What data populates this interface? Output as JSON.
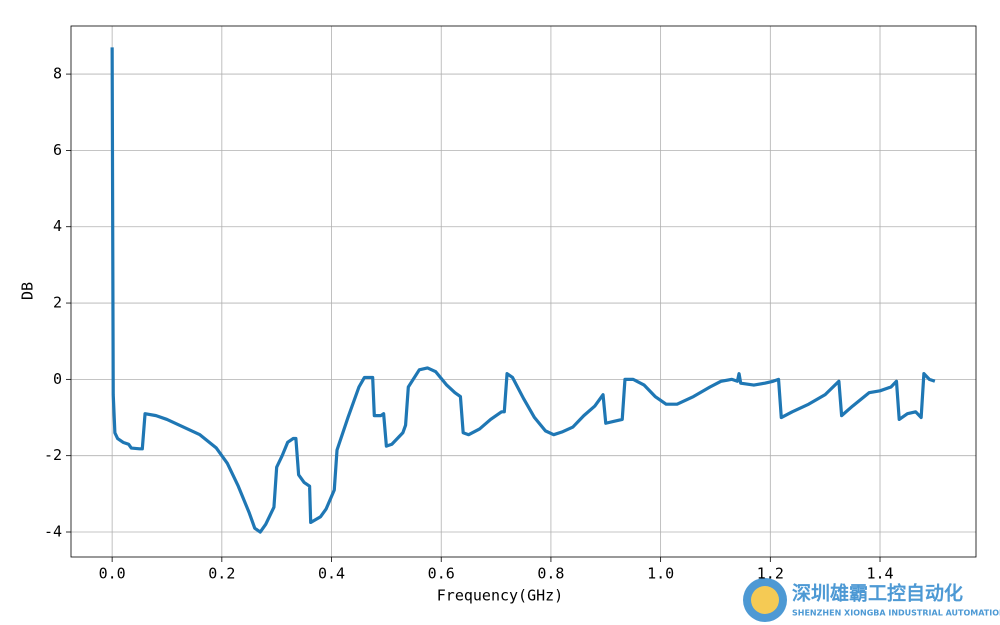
{
  "chart_data": {
    "type": "line",
    "xlabel": "Frequency(GHz)",
    "ylabel": "DB",
    "xlim": [
      -0.075,
      1.575
    ],
    "ylim": [
      -4.655,
      9.26
    ],
    "xticks": [
      {
        "value": 0,
        "label": "0.0"
      },
      0.2,
      0.4,
      0.6,
      0.8,
      {
        "value": 1,
        "label": "1.0"
      },
      1.2,
      1.4
    ],
    "yticks": [
      -4,
      -2,
      0,
      2,
      4,
      6,
      8
    ],
    "grid": true,
    "series": [
      {
        "color": "#1f77b4",
        "x": [
          0.0,
          0.002,
          0.005,
          0.01,
          0.02,
          0.03,
          0.035,
          0.05,
          0.055,
          0.06,
          0.08,
          0.1,
          0.13,
          0.16,
          0.19,
          0.21,
          0.23,
          0.25,
          0.26,
          0.27,
          0.28,
          0.295,
          0.3,
          0.31,
          0.32,
          0.33,
          0.335,
          0.34,
          0.35,
          0.36,
          0.362,
          0.38,
          0.39,
          0.405,
          0.41,
          0.43,
          0.45,
          0.46,
          0.475,
          0.478,
          0.49,
          0.495,
          0.5,
          0.51,
          0.53,
          0.535,
          0.54,
          0.56,
          0.575,
          0.59,
          0.61,
          0.625,
          0.635,
          0.64,
          0.65,
          0.67,
          0.69,
          0.71,
          0.715,
          0.72,
          0.73,
          0.75,
          0.77,
          0.79,
          0.805,
          0.82,
          0.84,
          0.86,
          0.88,
          0.895,
          0.9,
          0.915,
          0.93,
          0.935,
          0.95,
          0.97,
          0.99,
          1.01,
          1.03,
          1.06,
          1.09,
          1.11,
          1.13,
          1.14,
          1.143,
          1.146,
          1.17,
          1.19,
          1.205,
          1.215,
          1.22,
          1.24,
          1.27,
          1.3,
          1.325,
          1.33,
          1.35,
          1.38,
          1.4,
          1.42,
          1.43,
          1.435,
          1.45,
          1.465,
          1.475,
          1.48,
          1.49,
          1.5
        ],
        "values": [
          8.7,
          -0.4,
          -1.4,
          -1.55,
          -1.65,
          -1.7,
          -1.8,
          -1.82,
          -1.82,
          -0.9,
          -0.95,
          -1.05,
          -1.25,
          -1.45,
          -1.8,
          -2.2,
          -2.8,
          -3.5,
          -3.9,
          -4.0,
          -3.8,
          -3.35,
          -2.3,
          -2.0,
          -1.65,
          -1.55,
          -1.55,
          -2.5,
          -2.7,
          -2.8,
          -3.75,
          -3.6,
          -3.4,
          -2.9,
          -1.85,
          -1.0,
          -0.2,
          0.05,
          0.05,
          -0.95,
          -0.95,
          -0.9,
          -1.75,
          -1.7,
          -1.4,
          -1.2,
          -0.2,
          0.25,
          0.3,
          0.2,
          -0.15,
          -0.35,
          -0.45,
          -1.4,
          -1.45,
          -1.3,
          -1.05,
          -0.85,
          -0.85,
          0.15,
          0.05,
          -0.5,
          -1.0,
          -1.35,
          -1.45,
          -1.38,
          -1.25,
          -0.95,
          -0.7,
          -0.4,
          -1.15,
          -1.1,
          -1.05,
          0.0,
          0.0,
          -0.15,
          -0.45,
          -0.65,
          -0.65,
          -0.45,
          -0.2,
          -0.05,
          0.0,
          -0.05,
          0.15,
          -0.1,
          -0.15,
          -0.1,
          -0.05,
          0.0,
          -1.0,
          -0.85,
          -0.65,
          -0.4,
          -0.05,
          -0.95,
          -0.7,
          -0.35,
          -0.3,
          -0.2,
          -0.05,
          -1.05,
          -0.9,
          -0.85,
          -1.0,
          0.15,
          0.0,
          -0.05
        ]
      }
    ]
  },
  "watermark": {
    "title": "深圳雄霸工控自动化",
    "subtitle": "SHENZHEN XIONGBA INDUSTRIAL AUTOMATION"
  }
}
